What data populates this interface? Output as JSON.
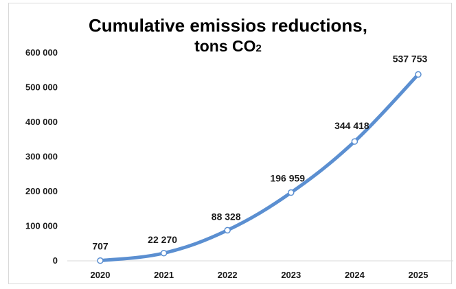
{
  "chart_data": {
    "type": "line",
    "title_line1": "Cumulative emissios reductions,",
    "title_line2_prefix": "tons CO",
    "title_line2_suffix": "2",
    "categories": [
      "2020",
      "2021",
      "2022",
      "2023",
      "2024",
      "2025"
    ],
    "series": [
      {
        "values": [
          707,
          22270,
          88328,
          196959,
          344418,
          537753
        ],
        "data_labels": [
          "707",
          "22 270",
          "88 328",
          "196 959",
          "344 418",
          "537 753"
        ]
      }
    ],
    "y_ticks": [
      0,
      100000,
      200000,
      300000,
      400000,
      500000,
      600000
    ],
    "y_tick_labels": [
      "0",
      "100 000",
      "200 000",
      "300 000",
      "400 000",
      "500 000",
      "600 000"
    ],
    "ylim": [
      0,
      600000
    ],
    "grid": false,
    "legend": "none",
    "line_color": "#5b8fd1",
    "marker_fill": "#ffffff"
  }
}
